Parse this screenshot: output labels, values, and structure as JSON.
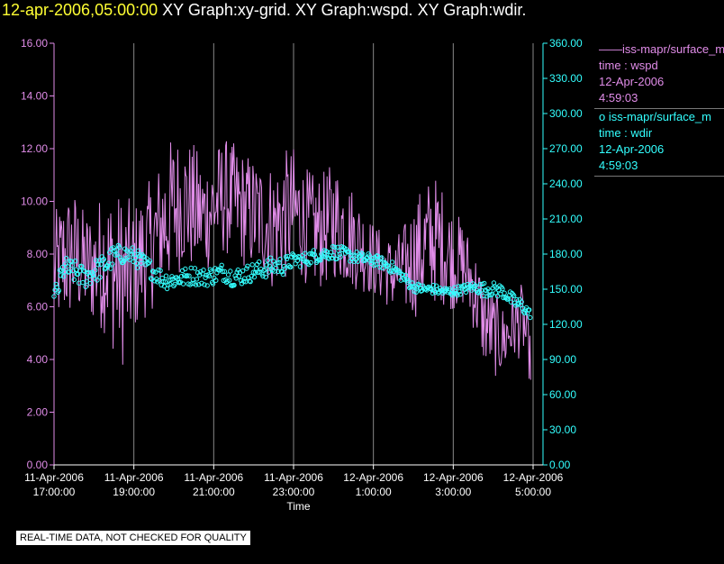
{
  "header": {
    "timestamp": "12-apr-2006,05:00:00",
    "title_rest": " XY Graph:xy-grid.  XY Graph:wspd.  XY Graph:wdir."
  },
  "legend": {
    "wspd": {
      "name": "iss-mapr/surface_m",
      "line2": "time : wspd",
      "date": "12-Apr-2006",
      "time": "4:59:03"
    },
    "wdir": {
      "name": "iss-mapr/surface_m",
      "line2": "time : wdir",
      "date": "12-Apr-2006",
      "time": "4:59:03"
    }
  },
  "notice": "REAL-TIME DATA, NOT CHECKED FOR QUALITY",
  "chart_data": {
    "type": "line",
    "xlabel": "Time",
    "x_tick_labels": [
      [
        "11-Apr-2006",
        "17:00:00"
      ],
      [
        "11-Apr-2006",
        "19:00:00"
      ],
      [
        "11-Apr-2006",
        "21:00:00"
      ],
      [
        "11-Apr-2006",
        "23:00:00"
      ],
      [
        "12-Apr-2006",
        "1:00:00"
      ],
      [
        "12-Apr-2006",
        "3:00:00"
      ],
      [
        "12-Apr-2006",
        "5:00:00"
      ]
    ],
    "x_hours_range": [
      17,
      29
    ],
    "y_left": {
      "ylim": [
        0,
        16
      ],
      "ticks": [
        "0.00",
        "2.00",
        "4.00",
        "6.00",
        "8.00",
        "10.00",
        "12.00",
        "14.00",
        "16.00"
      ],
      "color": "#e08ce8"
    },
    "y_right": {
      "ylim": [
        0,
        360
      ],
      "ticks": [
        "0.00",
        "30.00",
        "60.00",
        "90.00",
        "120.00",
        "150.00",
        "180.00",
        "210.00",
        "240.00",
        "270.00",
        "300.00",
        "330.00",
        "360.00"
      ],
      "color": "#33ffff"
    },
    "vertical_grid": true,
    "series": [
      {
        "name": "iss-mapr/surface_m time : wspd",
        "axis": "left",
        "style": "line",
        "color": "#e08ce8",
        "x_hours": [
          17.0,
          17.25,
          17.5,
          17.75,
          18.0,
          18.25,
          18.5,
          18.75,
          19.0,
          19.25,
          19.5,
          19.75,
          20.0,
          20.25,
          20.5,
          20.75,
          21.0,
          21.25,
          21.5,
          21.75,
          22.0,
          22.25,
          22.5,
          22.75,
          23.0,
          23.25,
          23.5,
          23.75,
          24.0,
          24.25,
          24.5,
          24.75,
          25.0,
          25.25,
          25.5,
          25.75,
          26.0,
          26.25,
          26.5,
          26.75,
          27.0,
          27.25,
          27.5,
          27.75,
          28.0,
          28.25,
          28.5,
          28.75,
          28.95
        ],
        "mean": [
          7.3,
          7.8,
          8.0,
          7.6,
          7.5,
          7.8,
          7.3,
          7.0,
          7.4,
          8.0,
          8.5,
          9.2,
          9.8,
          10.0,
          9.7,
          9.4,
          9.8,
          10.2,
          10.0,
          9.7,
          9.5,
          9.3,
          9.0,
          9.4,
          9.6,
          9.2,
          8.8,
          8.9,
          9.3,
          9.0,
          8.6,
          8.2,
          7.8,
          7.5,
          7.2,
          7.4,
          7.8,
          8.2,
          8.6,
          8.3,
          7.8,
          7.6,
          6.8,
          5.5,
          5.0,
          4.7,
          5.3,
          5.5,
          3.8
        ],
        "amplitude": [
          1.6,
          1.8,
          1.8,
          1.5,
          1.6,
          2.0,
          2.2,
          2.4,
          1.8,
          1.8,
          1.8,
          2.0,
          2.0,
          1.8,
          1.8,
          1.6,
          1.6,
          1.6,
          1.6,
          1.6,
          1.6,
          1.6,
          1.8,
          1.8,
          1.8,
          1.6,
          1.6,
          1.6,
          1.6,
          1.6,
          1.4,
          1.2,
          1.0,
          1.0,
          1.0,
          1.2,
          1.6,
          1.8,
          1.8,
          1.6,
          1.4,
          1.2,
          1.2,
          1.2,
          1.2,
          1.0,
          1.0,
          1.0,
          0.6
        ]
      },
      {
        "name": "iss-mapr/surface_m time : wdir",
        "axis": "right",
        "style": "markers",
        "color": "#33ffff",
        "x_hours": [
          17.0,
          17.25,
          17.5,
          17.75,
          18.0,
          18.25,
          18.5,
          18.75,
          19.0,
          19.25,
          19.5,
          19.75,
          20.0,
          20.25,
          20.5,
          20.75,
          21.0,
          21.25,
          21.5,
          21.75,
          22.0,
          22.25,
          22.5,
          22.75,
          23.0,
          23.25,
          23.5,
          23.75,
          24.0,
          24.25,
          24.5,
          24.75,
          25.0,
          25.25,
          25.5,
          25.75,
          26.0,
          26.25,
          26.5,
          26.75,
          27.0,
          27.25,
          27.5,
          27.75,
          28.0,
          28.25,
          28.5,
          28.75,
          28.95
        ],
        "mean": [
          140,
          168,
          165,
          160,
          165,
          170,
          178,
          180,
          178,
          172,
          165,
          158,
          158,
          160,
          162,
          160,
          162,
          165,
          160,
          162,
          165,
          167,
          170,
          170,
          175,
          175,
          178,
          180,
          182,
          180,
          178,
          176,
          175,
          172,
          168,
          160,
          152,
          150,
          150,
          148,
          148,
          150,
          152,
          150,
          150,
          148,
          140,
          135,
          128
        ],
        "amplitude": [
          12,
          10,
          10,
          10,
          10,
          10,
          10,
          8,
          8,
          8,
          8,
          8,
          8,
          8,
          8,
          8,
          8,
          8,
          8,
          8,
          8,
          8,
          8,
          8,
          6,
          6,
          6,
          6,
          6,
          6,
          5,
          5,
          5,
          5,
          5,
          5,
          4,
          4,
          4,
          4,
          4,
          4,
          4,
          6,
          6,
          6,
          6,
          6,
          3
        ]
      }
    ]
  }
}
